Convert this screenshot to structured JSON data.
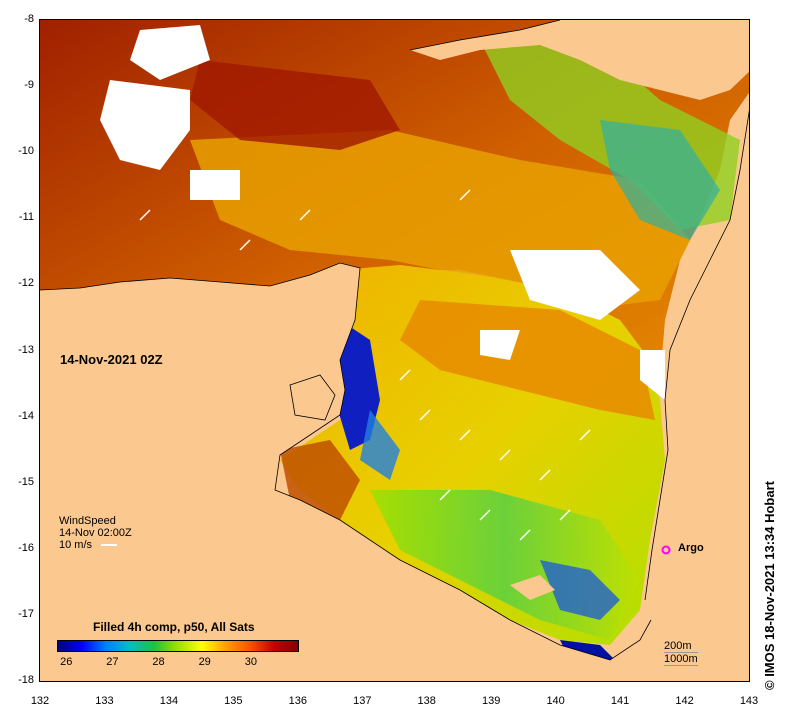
{
  "map": {
    "date_label": "14-Nov-2021 02Z",
    "wind": {
      "title": "WindSpeed",
      "time": "14-Nov 02:00Z",
      "scale_label": "10 m/s"
    },
    "argo_label": "Argo",
    "depth_labels": [
      "200m",
      "1000m"
    ],
    "colorbar": {
      "title": "Filled 4h comp, p50, All Sats",
      "ticks": [
        "26",
        "27",
        "28",
        "29",
        "30"
      ],
      "range": [
        25.8,
        31.0
      ],
      "colors": [
        "#00007f",
        "#0000ff",
        "#0080ff",
        "#00c0c0",
        "#20c040",
        "#a0e000",
        "#ffff00",
        "#ffa000",
        "#ff5000",
        "#c80000",
        "#800000"
      ]
    },
    "credit": "© IMOS 18-Nov-2021 13:34 Hobart",
    "x_axis": {
      "ticks": [
        "132",
        "133",
        "134",
        "135",
        "136",
        "137",
        "138",
        "139",
        "140",
        "141",
        "142",
        "143"
      ],
      "range": [
        132,
        143
      ]
    },
    "y_axis": {
      "ticks": [
        "-8",
        "-9",
        "-10",
        "-11",
        "-12",
        "-13",
        "-14",
        "-15",
        "-16",
        "-17",
        "-18"
      ],
      "range": [
        -8,
        -18
      ]
    },
    "land_color": "#fbc890"
  }
}
